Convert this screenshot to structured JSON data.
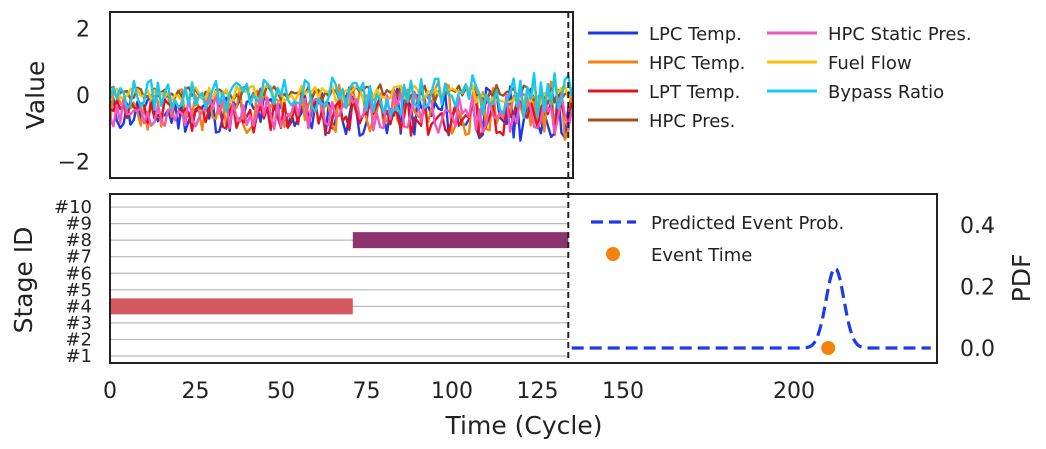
{
  "chart_data": [
    {
      "type": "line",
      "panel": "top",
      "ylabel": "Value",
      "ylim": [
        -2.5,
        2.5
      ],
      "yticks": [
        {
          "value": 2,
          "label": "2"
        },
        {
          "value": 0,
          "label": "0"
        },
        {
          "value": -2,
          "label": "−2"
        }
      ],
      "xlim": [
        0,
        135
      ],
      "series": [
        {
          "name": "LPC Temp.",
          "color": "#1f3be8",
          "mean": -0.55,
          "amp": 0.55,
          "seed": 11
        },
        {
          "name": "HPC Temp.",
          "color": "#f5820d",
          "mean": -0.45,
          "amp": 0.6,
          "seed": 23
        },
        {
          "name": "LPT Temp.",
          "color": "#e0141e",
          "mean": -0.6,
          "amp": 0.45,
          "seed": 37
        },
        {
          "name": "HPC Pres.",
          "color": "#a0521e",
          "mean": 0.05,
          "amp": 0.2,
          "seed": 41
        },
        {
          "name": "HPC Static Pres.",
          "color": "#ee56c0",
          "mean": -0.5,
          "amp": 0.45,
          "seed": 53
        },
        {
          "name": "Fuel Flow",
          "color": "#f5c20a",
          "mean": 0.05,
          "amp": 0.2,
          "seed": 67
        },
        {
          "name": "Bypass Ratio",
          "color": "#14c8f0",
          "mean": 0.0,
          "amp": 0.45,
          "seed": 79
        }
      ]
    },
    {
      "type": "gantt",
      "panel": "bottom-left",
      "ylabel": "Stage ID",
      "stages": [
        "#1",
        "#2",
        "#3",
        "#4",
        "#5",
        "#6",
        "#7",
        "#8",
        "#9",
        "#10"
      ],
      "bars": [
        {
          "stage": "#4",
          "start": 0,
          "end": 71,
          "color": "#d45a60"
        },
        {
          "stage": "#8",
          "start": 71,
          "end": 134,
          "color": "#8c3470"
        }
      ],
      "current_time": 134
    },
    {
      "type": "line",
      "panel": "bottom-right",
      "ylabel": "PDF",
      "ylim": [
        -0.05,
        0.48
      ],
      "yticks": [
        {
          "value": 0.0,
          "label": "0.0"
        },
        {
          "value": 0.2,
          "label": "0.2"
        },
        {
          "value": 0.4,
          "label": "0.4"
        }
      ],
      "series": [
        {
          "name": "Predicted Event Prob.",
          "color": "#1f3be8",
          "style": "dashed",
          "peak_x": 212,
          "peak_y": 0.26,
          "sigma": 2.6,
          "x_start": 135,
          "x_end": 240
        }
      ],
      "event": {
        "name": "Event Time",
        "x": 210,
        "y": 0.0,
        "color": "#f5820d"
      }
    }
  ],
  "xaxis": {
    "label": "Time (Cycle)",
    "xlim": [
      0,
      242
    ],
    "ticks": [
      {
        "value": 0,
        "label": "0"
      },
      {
        "value": 25,
        "label": "25"
      },
      {
        "value": 50,
        "label": "50"
      },
      {
        "value": 75,
        "label": "75"
      },
      {
        "value": 100,
        "label": "100"
      },
      {
        "value": 125,
        "label": "125"
      },
      {
        "value": 150,
        "label": "150"
      },
      {
        "value": 200,
        "label": "200"
      }
    ]
  }
}
